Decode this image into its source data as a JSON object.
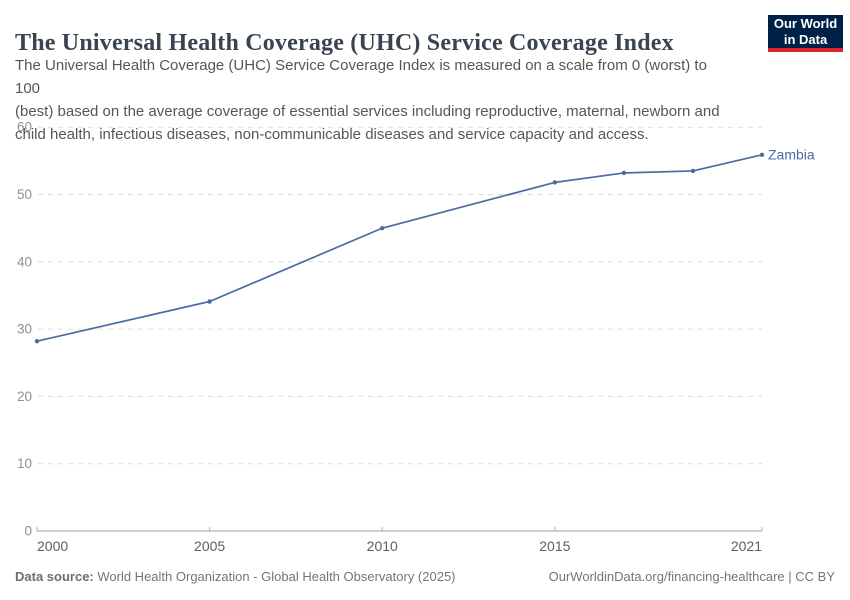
{
  "header": {
    "title": "The Universal Health Coverage (UHC) Service Coverage Index",
    "subtitle_lines": [
      "The Universal Health Coverage (UHC) Service Coverage Index is measured on a scale from 0 (worst) to 100",
      "(best) based on the average coverage of essential services including reproductive, maternal, newborn and",
      "child health, infectious diseases, non-communicable diseases and service capacity and access."
    ],
    "logo": {
      "line1": "Our World",
      "line2": "in Data",
      "bg_color": "#002147",
      "accent_color": "#e0232d"
    }
  },
  "chart_data": {
    "type": "line",
    "title": "The Universal Health Coverage (UHC) Service Coverage Index",
    "xlabel": "",
    "ylabel": "",
    "xlim": [
      2000,
      2021
    ],
    "ylim": [
      0,
      60
    ],
    "x_ticks": [
      2000,
      2005,
      2010,
      2015,
      2021
    ],
    "y_ticks": [
      0,
      10,
      20,
      30,
      40,
      50,
      60
    ],
    "grid": "horizontal-dashed",
    "legend_position": "end-of-line-label",
    "series": [
      {
        "name": "Zambia",
        "color": "#4c6ba3",
        "x": [
          2000,
          2005,
          2010,
          2015,
          2017,
          2019,
          2021
        ],
        "values": [
          28.2,
          34.1,
          45.0,
          51.8,
          53.2,
          53.5,
          55.9
        ]
      }
    ]
  },
  "colors": {
    "line": "#4c6ba3",
    "grid": "#dcdcdc",
    "axis": "#9e9e9e",
    "tick": "#b0b0b0",
    "y_tick_label": "#909090",
    "x_tick_label": "#5f5f5f",
    "title": "#3a4450",
    "subtitle": "#565656"
  },
  "footer": {
    "source_label": "Data source:",
    "source_text": " World Health Organization - Global Health Observatory (2025)",
    "credit": "OurWorldinData.org/financing-healthcare | CC BY"
  }
}
